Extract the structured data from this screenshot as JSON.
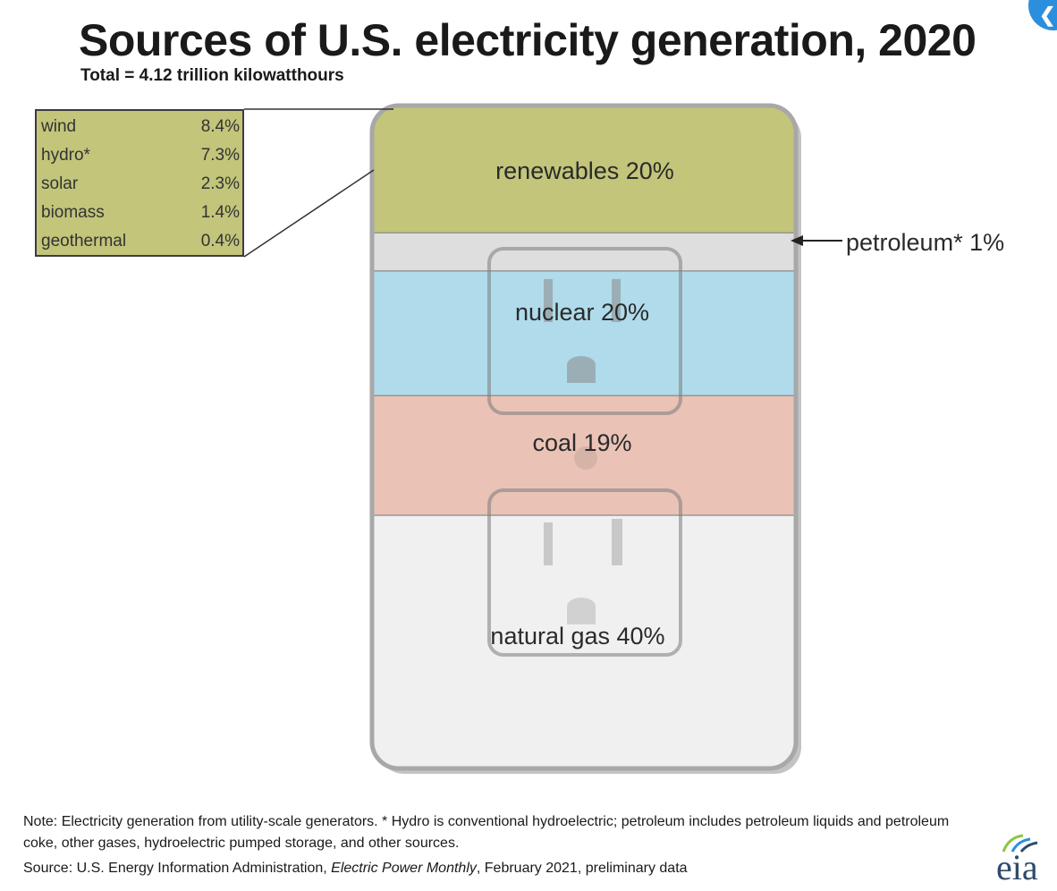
{
  "header": {
    "title": "Sources of U.S. electricity generation, 2020",
    "subtitle": "Total = 4.12 trillion kilowatthours"
  },
  "chart_data": {
    "type": "bar",
    "title": "Sources of U.S. electricity generation, 2020",
    "subtitle": "Total = 4.12 trillion kilowatthours",
    "unit": "percent",
    "series": [
      {
        "name": "renewables",
        "label": "renewables 20%",
        "value": 20,
        "color": "#c2c57a"
      },
      {
        "name": "petroleum",
        "label": "petroleum* 1%",
        "value": 1,
        "color": "#dedede"
      },
      {
        "name": "nuclear",
        "label": "nuclear 20%",
        "value": 20,
        "color": "#b0dbeb"
      },
      {
        "name": "coal",
        "label": "coal 19%",
        "value": 19,
        "color": "#eac3b6"
      },
      {
        "name": "natural gas",
        "label": "natural gas 40%",
        "value": 40,
        "color": "#f0f0f0"
      }
    ],
    "renewables_breakdown": [
      {
        "name": "wind",
        "value_label": "8.4%",
        "value": 8.4
      },
      {
        "name": "hydro*",
        "value_label": "7.3%",
        "value": 7.3
      },
      {
        "name": "solar",
        "value_label": "2.3%",
        "value": 2.3
      },
      {
        "name": "biomass",
        "value_label": "1.4%",
        "value": 1.4
      },
      {
        "name": "geothermal",
        "value_label": "0.4%",
        "value": 0.4
      }
    ],
    "breakdown_color": "#c2c57a"
  },
  "labels": {
    "renewables": "renewables 20%",
    "petroleum": "petroleum* 1%",
    "nuclear": "nuclear 20%",
    "coal": "coal 19%",
    "natural_gas": "natural gas 40%"
  },
  "footer": {
    "note": "Note: Electricity generation from utility-scale generators. * Hydro is conventional hydroelectric; petroleum includes petroleum liquids and petroleum coke, other gases, hydroelectric pumped storage, and other sources.",
    "source_prefix": "Source: U.S. Energy Information Administration, ",
    "source_publication": "Electric Power Monthly",
    "source_suffix": ", February 2021, preliminary data",
    "logo_text": "eia"
  },
  "colors": {
    "renewables": "#c2c57a",
    "nuclear": "#b0dbeb",
    "coal": "#eac3b6",
    "natural_gas": "#f0f0f0",
    "outline": "#a8a8a8",
    "logo_blue": "#2e4b6b",
    "logo_green": "#8cc63f",
    "badge_blue": "#2b8fde"
  }
}
